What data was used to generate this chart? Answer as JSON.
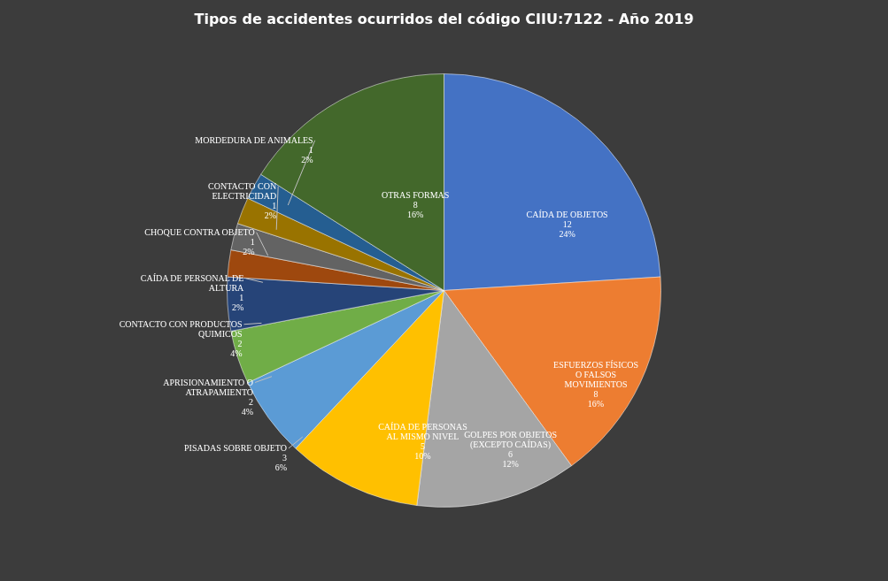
{
  "chart_data": {
    "type": "pie",
    "title": "Tipos de accidentes ocurridos del código CIIU:7122 - Año 2019",
    "categories": [
      "CAÍDA DE OBJETOS",
      "ESFUERZOS FÍSICOS O FALSOS MOVIMIENTOS",
      "GOLPES POR OBJETOS (EXCEPTO CAÍDAS)",
      "CAÍDA DE PERSONAS AL MISMO NIVEL",
      "PISADAS SOBRE OBJETO",
      "APRISIONAMIENTO O ATRAPAMIENTO",
      "CONTACTO CON PRODUCTOS QUIMICOS",
      "CAÍDA DE PERSONAL DE ALTURA",
      "CHOQUE CONTRA OBJETO",
      "CONTACTO CON ELECTRICIDAD",
      "MORDEDURA DE ANIMALES",
      "OTRAS FORMAS"
    ],
    "values": [
      12,
      8,
      6,
      5,
      3,
      2,
      2,
      1,
      1,
      1,
      1,
      8
    ],
    "value_labels": [
      "12\n24%",
      "8\n16%",
      "6\n12%",
      "5\n10%",
      "3\n6%",
      "2\n4%",
      "2\n4%",
      "1\n2%",
      "1\n2%",
      "1\n2%",
      "1\n2%",
      "8\n16%"
    ],
    "colors": [
      "#4472c4",
      "#ed7d31",
      "#a5a5a5",
      "#ffc000",
      "#5b9bd5",
      "#70ad47",
      "#264478",
      "#9e480e",
      "#636363",
      "#997300",
      "#255e91",
      "#43682b"
    ]
  }
}
